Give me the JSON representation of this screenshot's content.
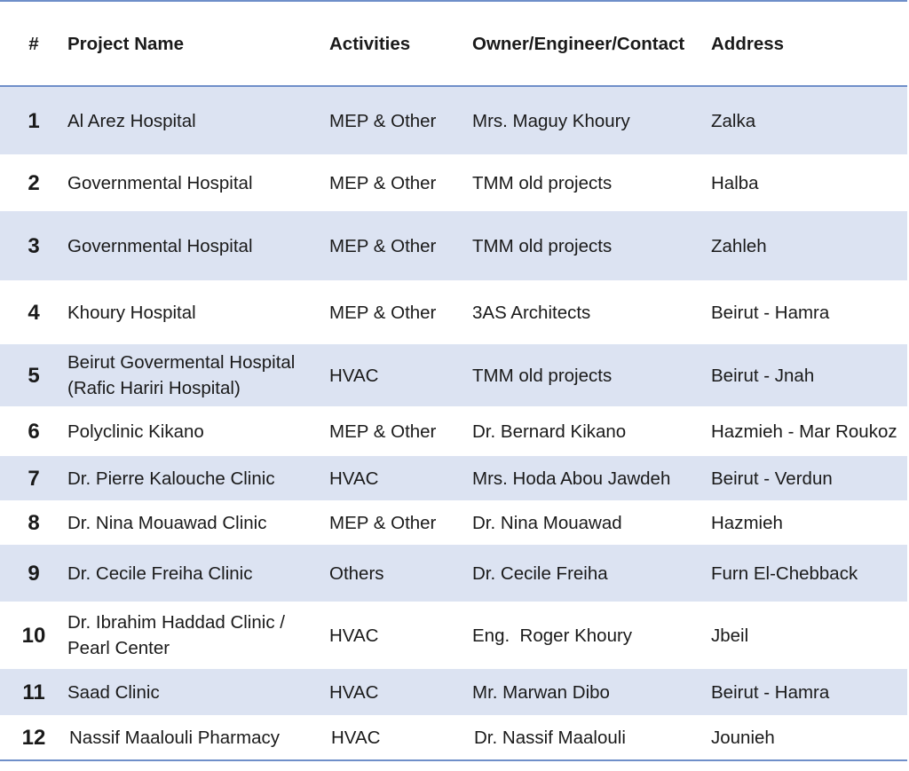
{
  "headers": {
    "num": "#",
    "name": "Project Name",
    "activities": "Activities",
    "contact": "Owner/Engineer/Contact",
    "address": "Address"
  },
  "rows": [
    {
      "num": "1",
      "name": "Al Arez Hospital",
      "activities": "MEP & Other",
      "contact": "Mrs. Maguy Khoury",
      "address": "Zalka"
    },
    {
      "num": "2",
      "name": "Governmental Hospital",
      "activities": "MEP & Other",
      "contact": "TMM old projects",
      "address": "Halba"
    },
    {
      "num": "3",
      "name": "Governmental Hospital",
      "activities": "MEP & Other",
      "contact": "TMM old projects",
      "address": "Zahleh"
    },
    {
      "num": "4",
      "name": "Khoury Hospital",
      "activities": "MEP & Other",
      "contact": "3AS Architects",
      "address": "Beirut - Hamra"
    },
    {
      "num": "5",
      "name": "Beirut Govermental Hospital (Rafic Hariri Hospital)",
      "activities": "HVAC",
      "contact": "TMM old projects",
      "address": "Beirut - Jnah"
    },
    {
      "num": "6",
      "name": "Polyclinic Kikano",
      "activities": "MEP & Other",
      "contact": "Dr. Bernard Kikano",
      "address": "Hazmieh - Mar Roukoz"
    },
    {
      "num": "7",
      "name": "Dr. Pierre Kalouche Clinic",
      "activities": "HVAC",
      "contact": "Mrs. Hoda Abou Jawdeh",
      "address": "Beirut - Verdun"
    },
    {
      "num": "8",
      "name": "Dr. Nina Mouawad Clinic",
      "activities": "MEP & Other",
      "contact": "Dr. Nina Mouawad",
      "address": "Hazmieh"
    },
    {
      "num": "9",
      "name": "Dr. Cecile Freiha Clinic",
      "activities": "Others",
      "contact": "Dr. Cecile Freiha",
      "address": "Furn El-Chebback"
    },
    {
      "num": "10",
      "name": "Dr. Ibrahim Haddad Clinic / Pearl Center",
      "activities": "HVAC",
      "contact": "Eng.  Roger Khoury",
      "address": "Jbeil"
    },
    {
      "num": "11",
      "name": "Saad Clinic",
      "activities": "HVAC",
      "contact": "Mr. Marwan Dibo",
      "address": "Beirut - Hamra"
    },
    {
      "num": "12",
      "name": "Nassif Maalouli Pharmacy",
      "activities": "HVAC",
      "contact": "Dr. Nassif Maalouli",
      "address": "Jounieh"
    }
  ],
  "colors": {
    "rule": "#6f8fc9",
    "shaded_row": "#dce3f2"
  }
}
